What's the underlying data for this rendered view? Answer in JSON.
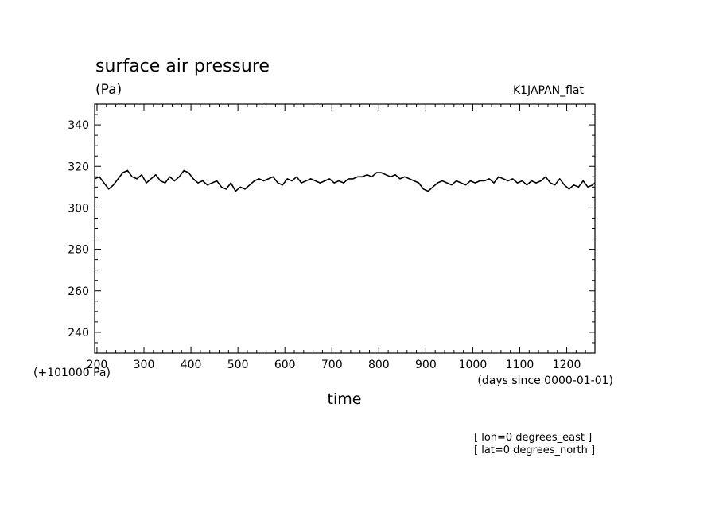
{
  "chart_data": {
    "type": "line",
    "title": "surface air pressure",
    "units": "(Pa)",
    "dataset": "K1JAPAN_flat",
    "xlabel": "time",
    "xunits": "(days since 0000-01-01)",
    "yoffset_label": "(+101000 Pa)",
    "xlim": [
      195,
      1260
    ],
    "ylim": [
      230,
      350
    ],
    "xticks": [
      200,
      300,
      400,
      500,
      600,
      700,
      800,
      900,
      1000,
      1100,
      1200
    ],
    "yticks": [
      240,
      260,
      280,
      300,
      320,
      340
    ],
    "grid": false,
    "notes": [
      "[ lon=0 degrees_east ]",
      "[ lat=0 degrees_north ]"
    ],
    "series": [
      {
        "color": "#000000",
        "x": [
          195,
          205,
          215,
          225,
          235,
          245,
          255,
          265,
          275,
          285,
          295,
          305,
          315,
          325,
          335,
          345,
          355,
          365,
          375,
          385,
          395,
          405,
          415,
          425,
          435,
          445,
          455,
          465,
          475,
          485,
          495,
          505,
          515,
          525,
          535,
          545,
          555,
          565,
          575,
          585,
          595,
          605,
          615,
          625,
          635,
          645,
          655,
          665,
          675,
          685,
          695,
          705,
          715,
          725,
          735,
          745,
          755,
          765,
          775,
          785,
          795,
          805,
          815,
          825,
          835,
          845,
          855,
          865,
          875,
          885,
          895,
          905,
          915,
          925,
          935,
          945,
          955,
          965,
          975,
          985,
          995,
          1005,
          1015,
          1025,
          1035,
          1045,
          1055,
          1065,
          1075,
          1085,
          1095,
          1105,
          1115,
          1125,
          1135,
          1145,
          1155,
          1165,
          1175,
          1185,
          1195,
          1205,
          1215,
          1225,
          1235,
          1245,
          1255,
          1260
        ],
        "y": [
          314,
          315,
          312,
          309,
          311,
          314,
          317,
          318,
          315,
          314,
          316,
          312,
          314,
          316,
          313,
          312,
          315,
          313,
          315,
          318,
          317,
          314,
          312,
          313,
          311,
          312,
          313,
          310,
          309,
          312,
          308,
          310,
          309,
          311,
          313,
          314,
          313,
          314,
          315,
          312,
          311,
          314,
          313,
          315,
          312,
          313,
          314,
          313,
          312,
          313,
          314,
          312,
          313,
          312,
          314,
          314,
          315,
          315,
          316,
          315,
          317,
          317,
          316,
          315,
          316,
          314,
          315,
          314,
          313,
          312,
          309,
          308,
          310,
          312,
          313,
          312,
          311,
          313,
          312,
          311,
          313,
          312,
          313,
          313,
          314,
          312,
          315,
          314,
          313,
          314,
          312,
          313,
          311,
          313,
          312,
          313,
          315,
          312,
          311,
          314,
          311,
          309,
          311,
          310,
          313,
          310,
          311,
          312
        ]
      }
    ]
  }
}
